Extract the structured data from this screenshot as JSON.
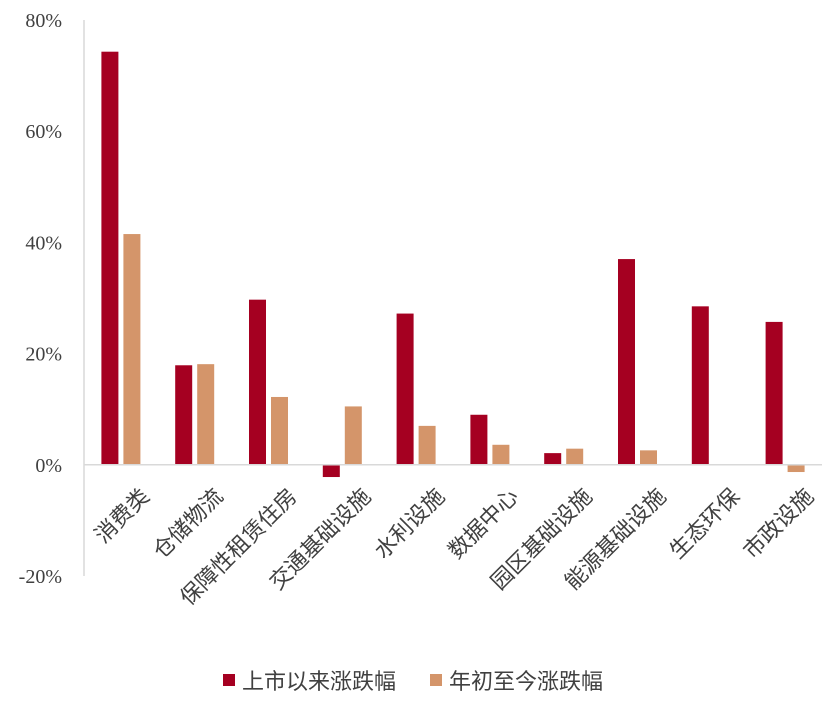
{
  "chart_data": {
    "type": "bar",
    "categories": [
      "消费类",
      "仓储物流",
      "保障性租赁住房",
      "交通基础设施",
      "水利设施",
      "数据中心",
      "园区基础设施",
      "能源基础设施",
      "生态环保",
      "市政设施"
    ],
    "series": [
      {
        "name": "上市以来涨跌幅",
        "color": "#a50021",
        "values": [
          74.3,
          17.9,
          29.7,
          -2.2,
          27.2,
          9.0,
          2.1,
          37.0,
          28.5,
          25.7
        ]
      },
      {
        "name": "年初至今涨跌幅",
        "color": "#d4956a",
        "values": [
          41.5,
          18.1,
          12.2,
          10.5,
          7.0,
          3.6,
          2.9,
          2.6,
          0.0,
          -1.3
        ]
      }
    ],
    "ylim": [
      -20,
      80
    ],
    "yticks": [
      "80%",
      "60%",
      "40%",
      "20%",
      "0%",
      "-20%"
    ],
    "ytick_values": [
      80,
      60,
      40,
      20,
      0,
      -20
    ],
    "legend_position": "bottom",
    "grid": false
  }
}
